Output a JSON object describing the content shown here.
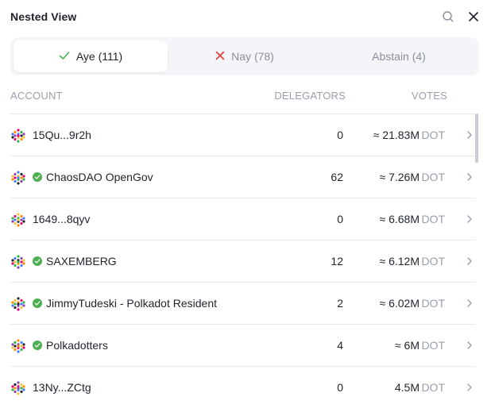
{
  "header": {
    "title": "Nested View",
    "search_icon": "search-icon",
    "close_icon": "close-icon"
  },
  "tabs": [
    {
      "label": "Aye (111)",
      "icon": "check-icon",
      "active": true,
      "color": "#4caf50"
    },
    {
      "label": "Nay (78)",
      "icon": "x-icon",
      "active": false,
      "color": "#e53935"
    },
    {
      "label": "Abstain (4)",
      "active": false
    }
  ],
  "columns": {
    "account": "ACCOUNT",
    "delegators": "DELEGATORS",
    "votes": "VOTES"
  },
  "rows": [
    {
      "account": "15Qu...9r2h",
      "verified": false,
      "delegators": "0",
      "votes": "≈ 21.83M",
      "unit": "DOT"
    },
    {
      "account": "ChaosDAO OpenGov",
      "verified": true,
      "delegators": "62",
      "votes": "≈ 7.26M",
      "unit": "DOT"
    },
    {
      "account": "1649...8qyv",
      "verified": false,
      "delegators": "0",
      "votes": "≈ 6.68M",
      "unit": "DOT"
    },
    {
      "account": "SAXEMBERG",
      "verified": true,
      "delegators": "12",
      "votes": "≈ 6.12M",
      "unit": "DOT"
    },
    {
      "account": "JimmyTudeski - Polkadot Resident",
      "verified": true,
      "delegators": "2",
      "votes": "≈ 6.02M",
      "unit": "DOT"
    },
    {
      "account": "Polkadotters",
      "verified": true,
      "delegators": "4",
      "votes": "≈ 6M",
      "unit": "DOT"
    },
    {
      "account": "13Ny...ZCtg",
      "verified": false,
      "delegators": "0",
      "votes": "4.5M",
      "unit": "DOT"
    }
  ],
  "colors": {
    "verified": "#4caf50",
    "muted": "#98a0ad",
    "text": "#1e232c"
  }
}
